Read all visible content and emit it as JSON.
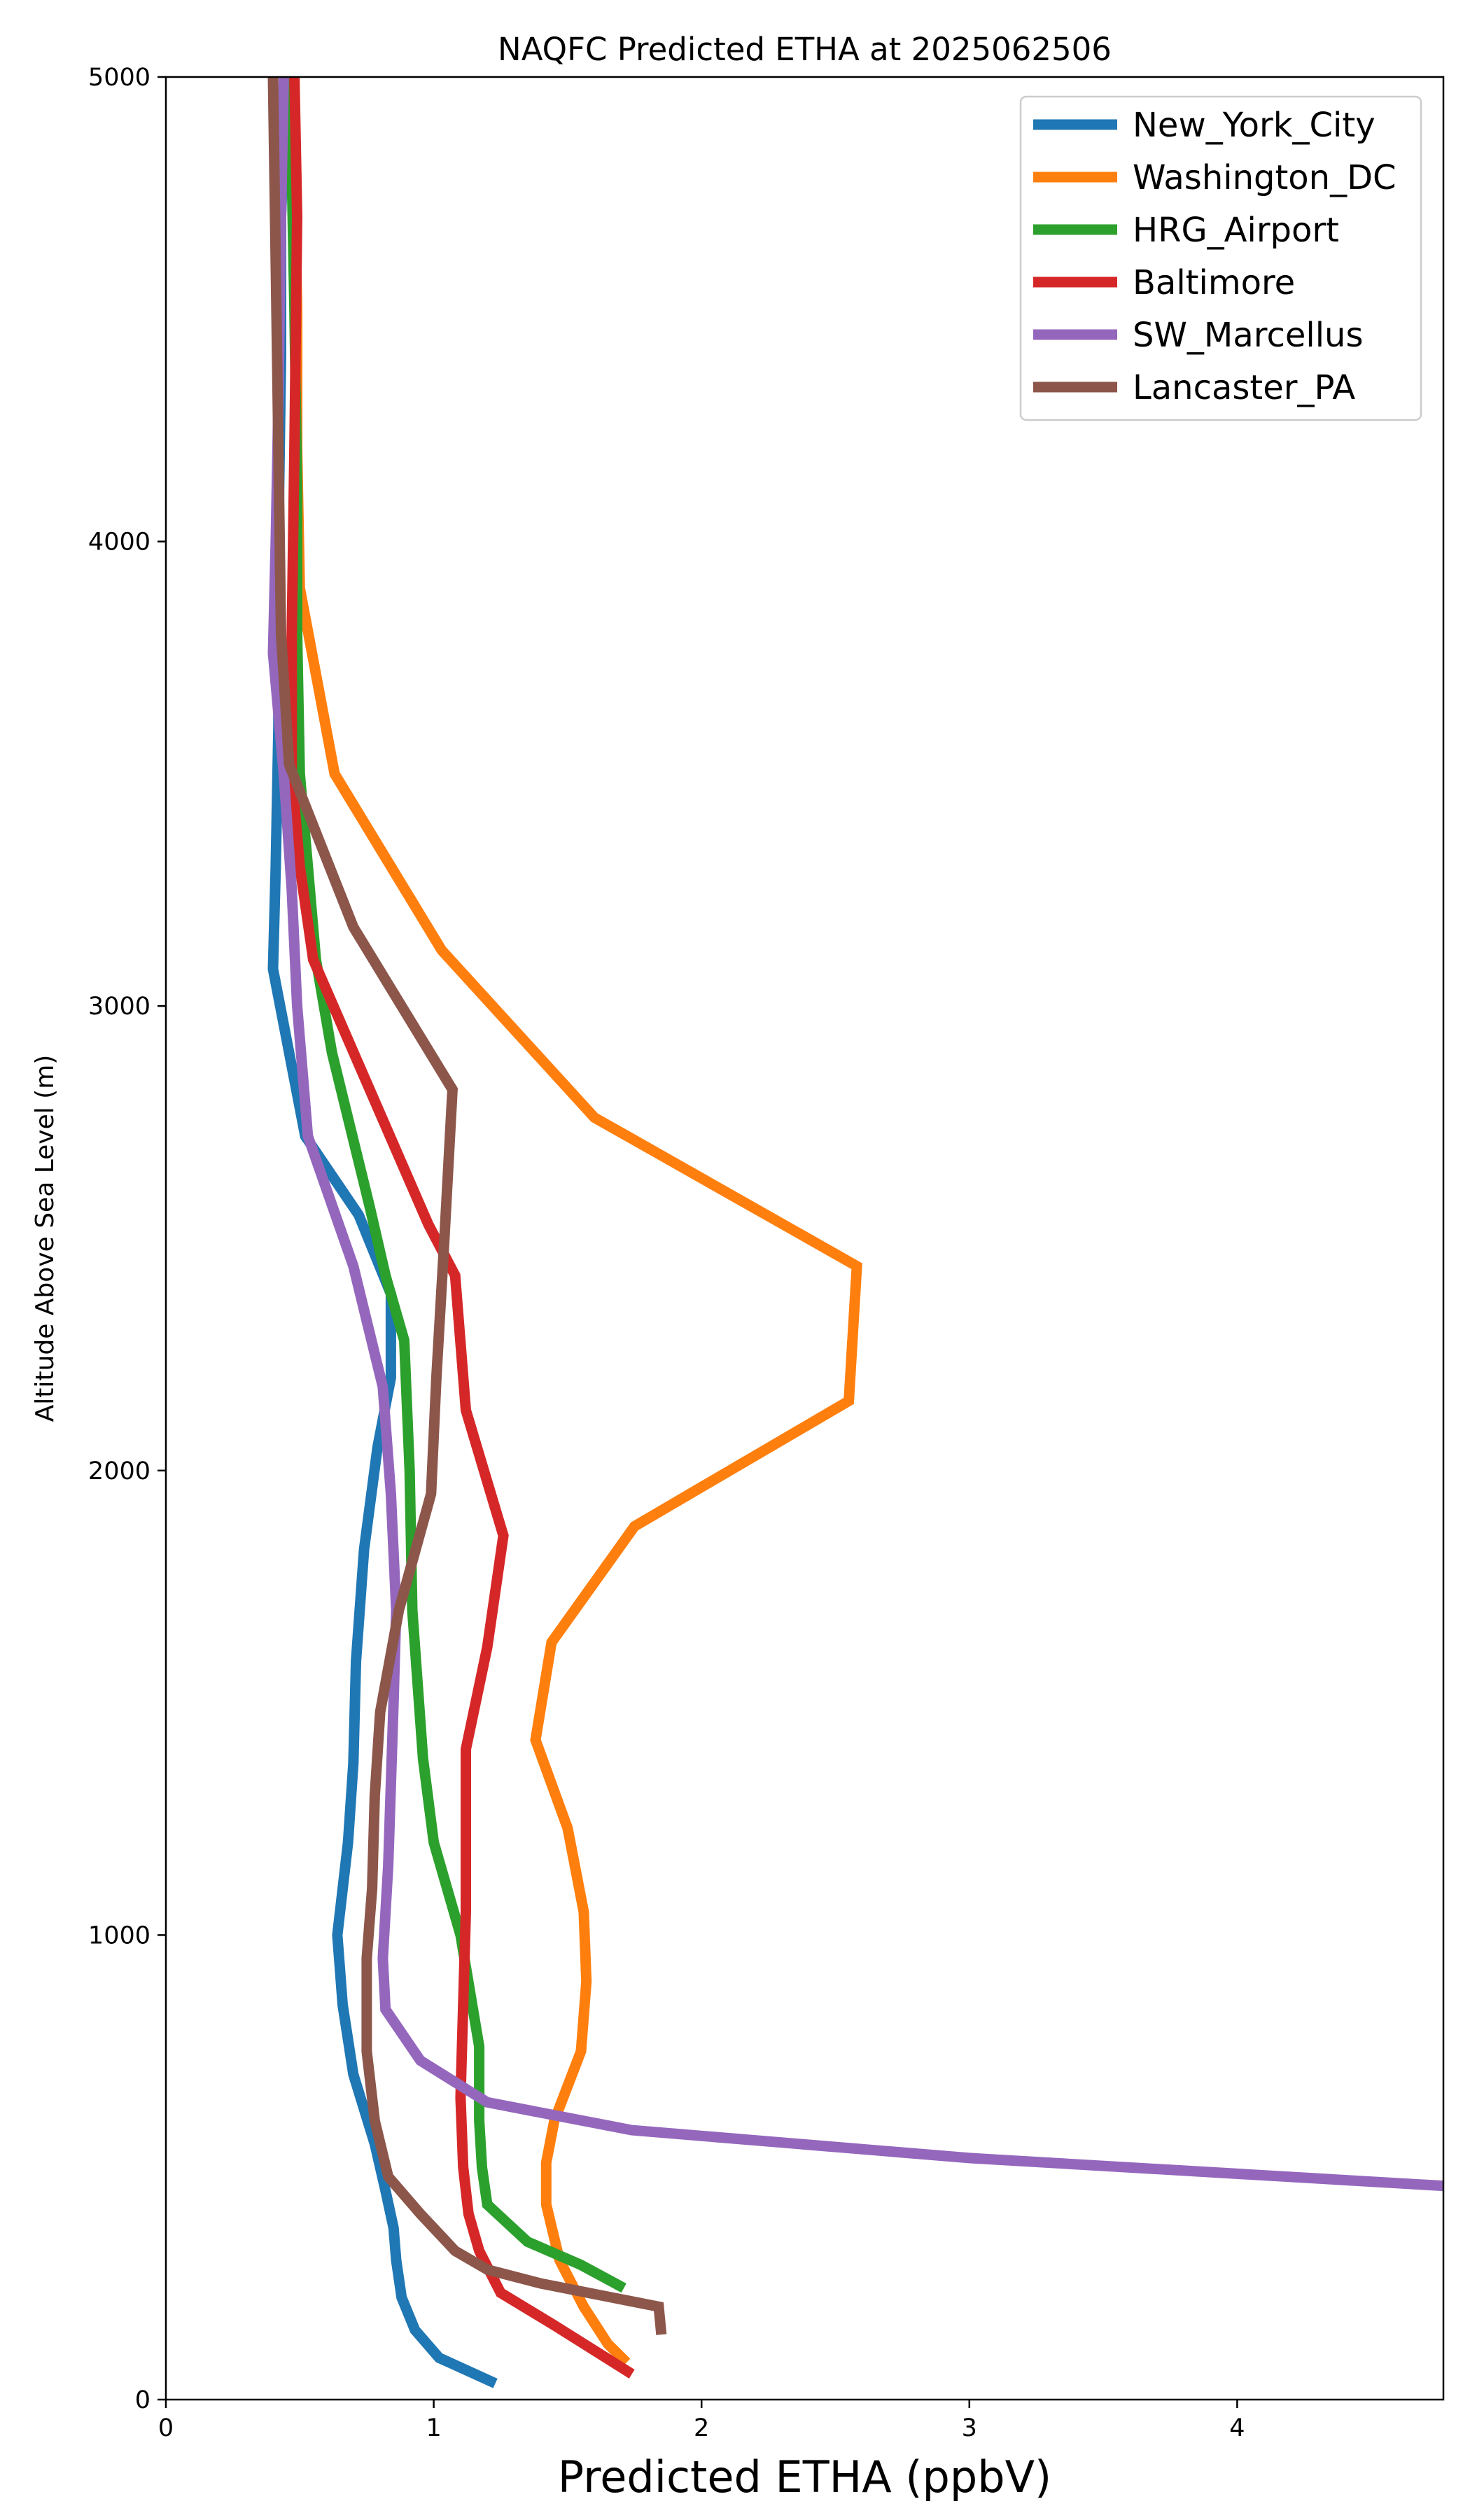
{
  "chart_data": {
    "type": "line",
    "title": "NAQFC Predicted ETHA at 2025062506",
    "xlabel": "Predicted ETHA (ppbV)",
    "ylabel": "Altitude Above Sea Level (m)",
    "xlim": [
      0,
      4.77
    ],
    "ylim": [
      0,
      5000
    ],
    "x_ticks": [
      0,
      1,
      2,
      3,
      4
    ],
    "y_ticks": [
      0,
      1000,
      2000,
      3000,
      4000,
      5000
    ],
    "grid": false,
    "legend_position": "top-right",
    "series": [
      {
        "name": "New_York_City",
        "color": "#1f77b4",
        "points": [
          [
            1.23,
            35
          ],
          [
            1.02,
            90
          ],
          [
            0.93,
            150
          ],
          [
            0.88,
            220
          ],
          [
            0.86,
            300
          ],
          [
            0.85,
            370
          ],
          [
            0.82,
            450
          ],
          [
            0.78,
            550
          ],
          [
            0.7,
            700
          ],
          [
            0.66,
            850
          ],
          [
            0.64,
            1000
          ],
          [
            0.68,
            1200
          ],
          [
            0.7,
            1370
          ],
          [
            0.71,
            1590
          ],
          [
            0.74,
            1830
          ],
          [
            0.79,
            2050
          ],
          [
            0.84,
            2200
          ],
          [
            0.84,
            2380
          ],
          [
            0.72,
            2550
          ],
          [
            0.52,
            2720
          ],
          [
            0.4,
            3080
          ],
          [
            0.41,
            3300
          ],
          [
            0.42,
            3600
          ],
          [
            0.42,
            4000
          ],
          [
            0.43,
            4400
          ],
          [
            0.43,
            4700
          ],
          [
            0.45,
            5000
          ]
        ]
      },
      {
        "name": "Washington_DC",
        "color": "#ff7f0e",
        "points": [
          [
            1.72,
            80
          ],
          [
            1.65,
            120
          ],
          [
            1.56,
            200
          ],
          [
            1.47,
            300
          ],
          [
            1.42,
            420
          ],
          [
            1.42,
            510
          ],
          [
            1.45,
            600
          ],
          [
            1.55,
            750
          ],
          [
            1.57,
            900
          ],
          [
            1.56,
            1050
          ],
          [
            1.5,
            1230
          ],
          [
            1.38,
            1420
          ],
          [
            1.44,
            1630
          ],
          [
            1.75,
            1880
          ],
          [
            2.55,
            2150
          ],
          [
            2.58,
            2440
          ],
          [
            1.6,
            2760
          ],
          [
            1.03,
            3120
          ],
          [
            0.63,
            3500
          ],
          [
            0.5,
            3900
          ],
          [
            0.49,
            4200
          ],
          [
            0.49,
            4500
          ],
          [
            0.48,
            4800
          ],
          [
            0.48,
            5000
          ]
        ]
      },
      {
        "name": "HRG_Airport",
        "color": "#2ca02c",
        "points": [
          [
            1.71,
            240
          ],
          [
            1.55,
            290
          ],
          [
            1.35,
            340
          ],
          [
            1.2,
            420
          ],
          [
            1.18,
            500
          ],
          [
            1.17,
            600
          ],
          [
            1.17,
            760
          ],
          [
            1.1,
            1000
          ],
          [
            1.0,
            1200
          ],
          [
            0.96,
            1380
          ],
          [
            0.92,
            1700
          ],
          [
            0.91,
            2000
          ],
          [
            0.89,
            2280
          ],
          [
            0.82,
            2420
          ],
          [
            0.76,
            2570
          ],
          [
            0.62,
            2900
          ],
          [
            0.56,
            3100
          ],
          [
            0.5,
            3500
          ],
          [
            0.49,
            3800
          ],
          [
            0.49,
            4100
          ],
          [
            0.48,
            4500
          ],
          [
            0.47,
            4800
          ],
          [
            0.47,
            5000
          ]
        ]
      },
      {
        "name": "Baltimore",
        "color": "#d62728",
        "points": [
          [
            1.74,
            55
          ],
          [
            1.45,
            160
          ],
          [
            1.25,
            230
          ],
          [
            1.17,
            320
          ],
          [
            1.13,
            400
          ],
          [
            1.11,
            500
          ],
          [
            1.1,
            650
          ],
          [
            1.11,
            850
          ],
          [
            1.12,
            1050
          ],
          [
            1.12,
            1200
          ],
          [
            1.12,
            1400
          ],
          [
            1.2,
            1620
          ],
          [
            1.26,
            1860
          ],
          [
            1.12,
            2130
          ],
          [
            1.08,
            2420
          ],
          [
            0.98,
            2530
          ],
          [
            0.55,
            3100
          ],
          [
            0.5,
            3300
          ],
          [
            0.47,
            3500
          ],
          [
            0.47,
            3800
          ],
          [
            0.48,
            4200
          ],
          [
            0.49,
            4700
          ],
          [
            0.48,
            5000
          ]
        ]
      },
      {
        "name": "SW_Marcellus",
        "color": "#9467bd",
        "points": [
          [
            4.77,
            460
          ],
          [
            3.0,
            520
          ],
          [
            1.74,
            580
          ],
          [
            1.2,
            640
          ],
          [
            0.95,
            730
          ],
          [
            0.82,
            840
          ],
          [
            0.81,
            950
          ],
          [
            0.83,
            1150
          ],
          [
            0.85,
            1500
          ],
          [
            0.86,
            1700
          ],
          [
            0.84,
            1950
          ],
          [
            0.81,
            2180
          ],
          [
            0.7,
            2440
          ],
          [
            0.53,
            2720
          ],
          [
            0.49,
            3000
          ],
          [
            0.47,
            3250
          ],
          [
            0.44,
            3500
          ],
          [
            0.4,
            3760
          ],
          [
            0.41,
            4000
          ],
          [
            0.42,
            4300
          ],
          [
            0.43,
            4700
          ],
          [
            0.44,
            5000
          ]
        ]
      },
      {
        "name": "Lancaster_PA",
        "color": "#8c564b",
        "points": [
          [
            1.85,
            140
          ],
          [
            1.84,
            200
          ],
          [
            1.4,
            250
          ],
          [
            1.2,
            280
          ],
          [
            1.08,
            320
          ],
          [
            0.95,
            400
          ],
          [
            0.83,
            480
          ],
          [
            0.78,
            600
          ],
          [
            0.75,
            750
          ],
          [
            0.75,
            950
          ],
          [
            0.77,
            1100
          ],
          [
            0.78,
            1300
          ],
          [
            0.8,
            1480
          ],
          [
            0.87,
            1700
          ],
          [
            0.99,
            1950
          ],
          [
            1.01,
            2200
          ],
          [
            1.04,
            2500
          ],
          [
            1.07,
            2820
          ],
          [
            0.7,
            3170
          ],
          [
            0.46,
            3520
          ],
          [
            0.43,
            3800
          ],
          [
            0.42,
            4200
          ],
          [
            0.41,
            4600
          ],
          [
            0.4,
            5000
          ]
        ]
      }
    ]
  }
}
